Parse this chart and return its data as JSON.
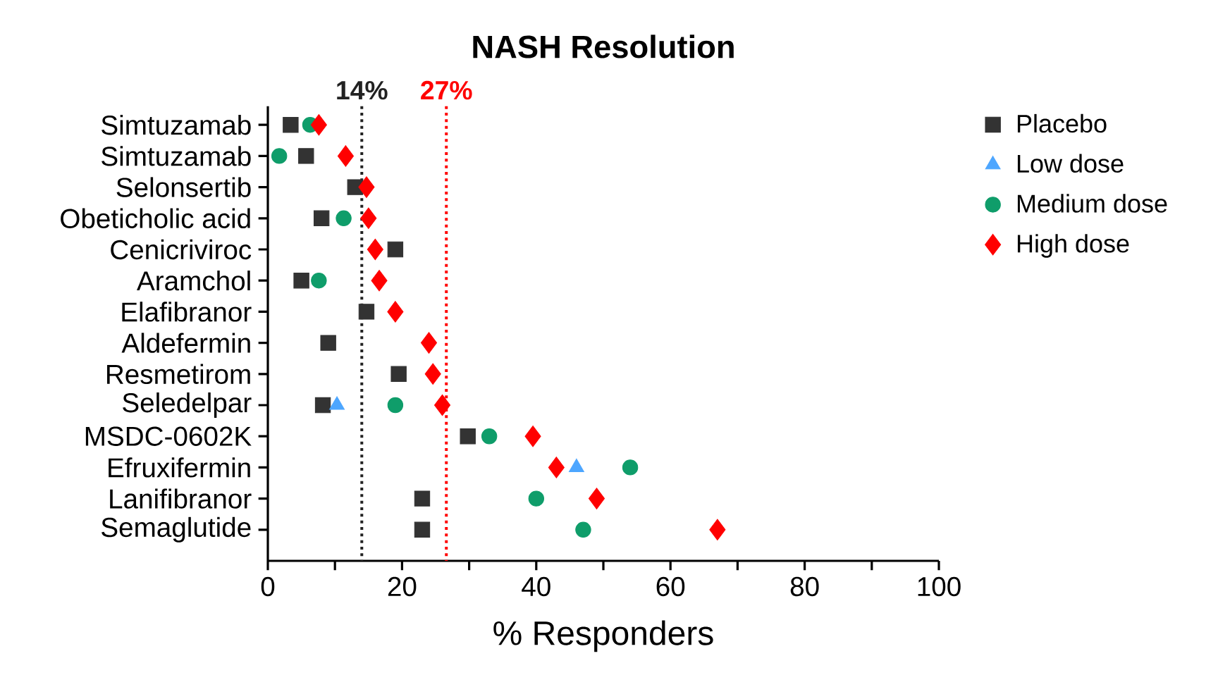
{
  "chart_data": {
    "type": "scatter",
    "title": "NASH Resolution",
    "xlabel": "% Responders",
    "categories": [
      "Simtuzamab",
      "Simtuzamab",
      "Selonsertib",
      "Obeticholic acid",
      "Cenicriviroc",
      "Aramchol",
      "Elafibranor",
      "Aldefermin",
      "Resmetirom",
      "Seledelpar",
      "MSDC-0602K",
      "Efruxifermin",
      "Lanifibranor",
      "Semaglutide"
    ],
    "series": [
      {
        "name": "Placebo",
        "color": "#333333",
        "marker": "square",
        "values": [
          3.4,
          5.7,
          13,
          8,
          19,
          5,
          14.7,
          9,
          19.5,
          8.2,
          29.8,
          null,
          23,
          23
        ]
      },
      {
        "name": "Low dose",
        "color": "#4da6ff",
        "marker": "triangle",
        "values": [
          null,
          null,
          null,
          null,
          null,
          null,
          null,
          null,
          null,
          10.3,
          null,
          46,
          null,
          null
        ]
      },
      {
        "name": "Medium dose",
        "color": "#0f9d6a",
        "marker": "circle",
        "values": [
          6.3,
          1.7,
          null,
          11.3,
          null,
          7.6,
          null,
          null,
          null,
          19,
          33,
          54,
          40,
          47
        ]
      },
      {
        "name": "High dose",
        "color": "#ff0000",
        "marker": "diamond",
        "values": [
          7.6,
          11.6,
          14.7,
          15,
          16,
          16.6,
          19,
          24,
          24.6,
          26,
          39.5,
          43,
          49,
          67
        ]
      }
    ],
    "xlim": [
      0,
      100
    ],
    "xticks": [
      0,
      {
        "value": 10,
        "label": null
      },
      20,
      {
        "value": 30,
        "label": null
      },
      40,
      {
        "value": 50,
        "label": null
      },
      60,
      {
        "value": 70,
        "label": null
      },
      80,
      {
        "value": 90,
        "label": null
      },
      100
    ],
    "ref_lines": [
      {
        "axis": "x",
        "value": 14,
        "label": "14%",
        "color": "#222222",
        "line_style": "dotted"
      },
      {
        "axis": "x",
        "value": 26.6,
        "label": "27%",
        "color": "#ff0000",
        "line_style": "dotted"
      }
    ],
    "grid": false,
    "legend": "right",
    "orientation": "horizontal"
  }
}
